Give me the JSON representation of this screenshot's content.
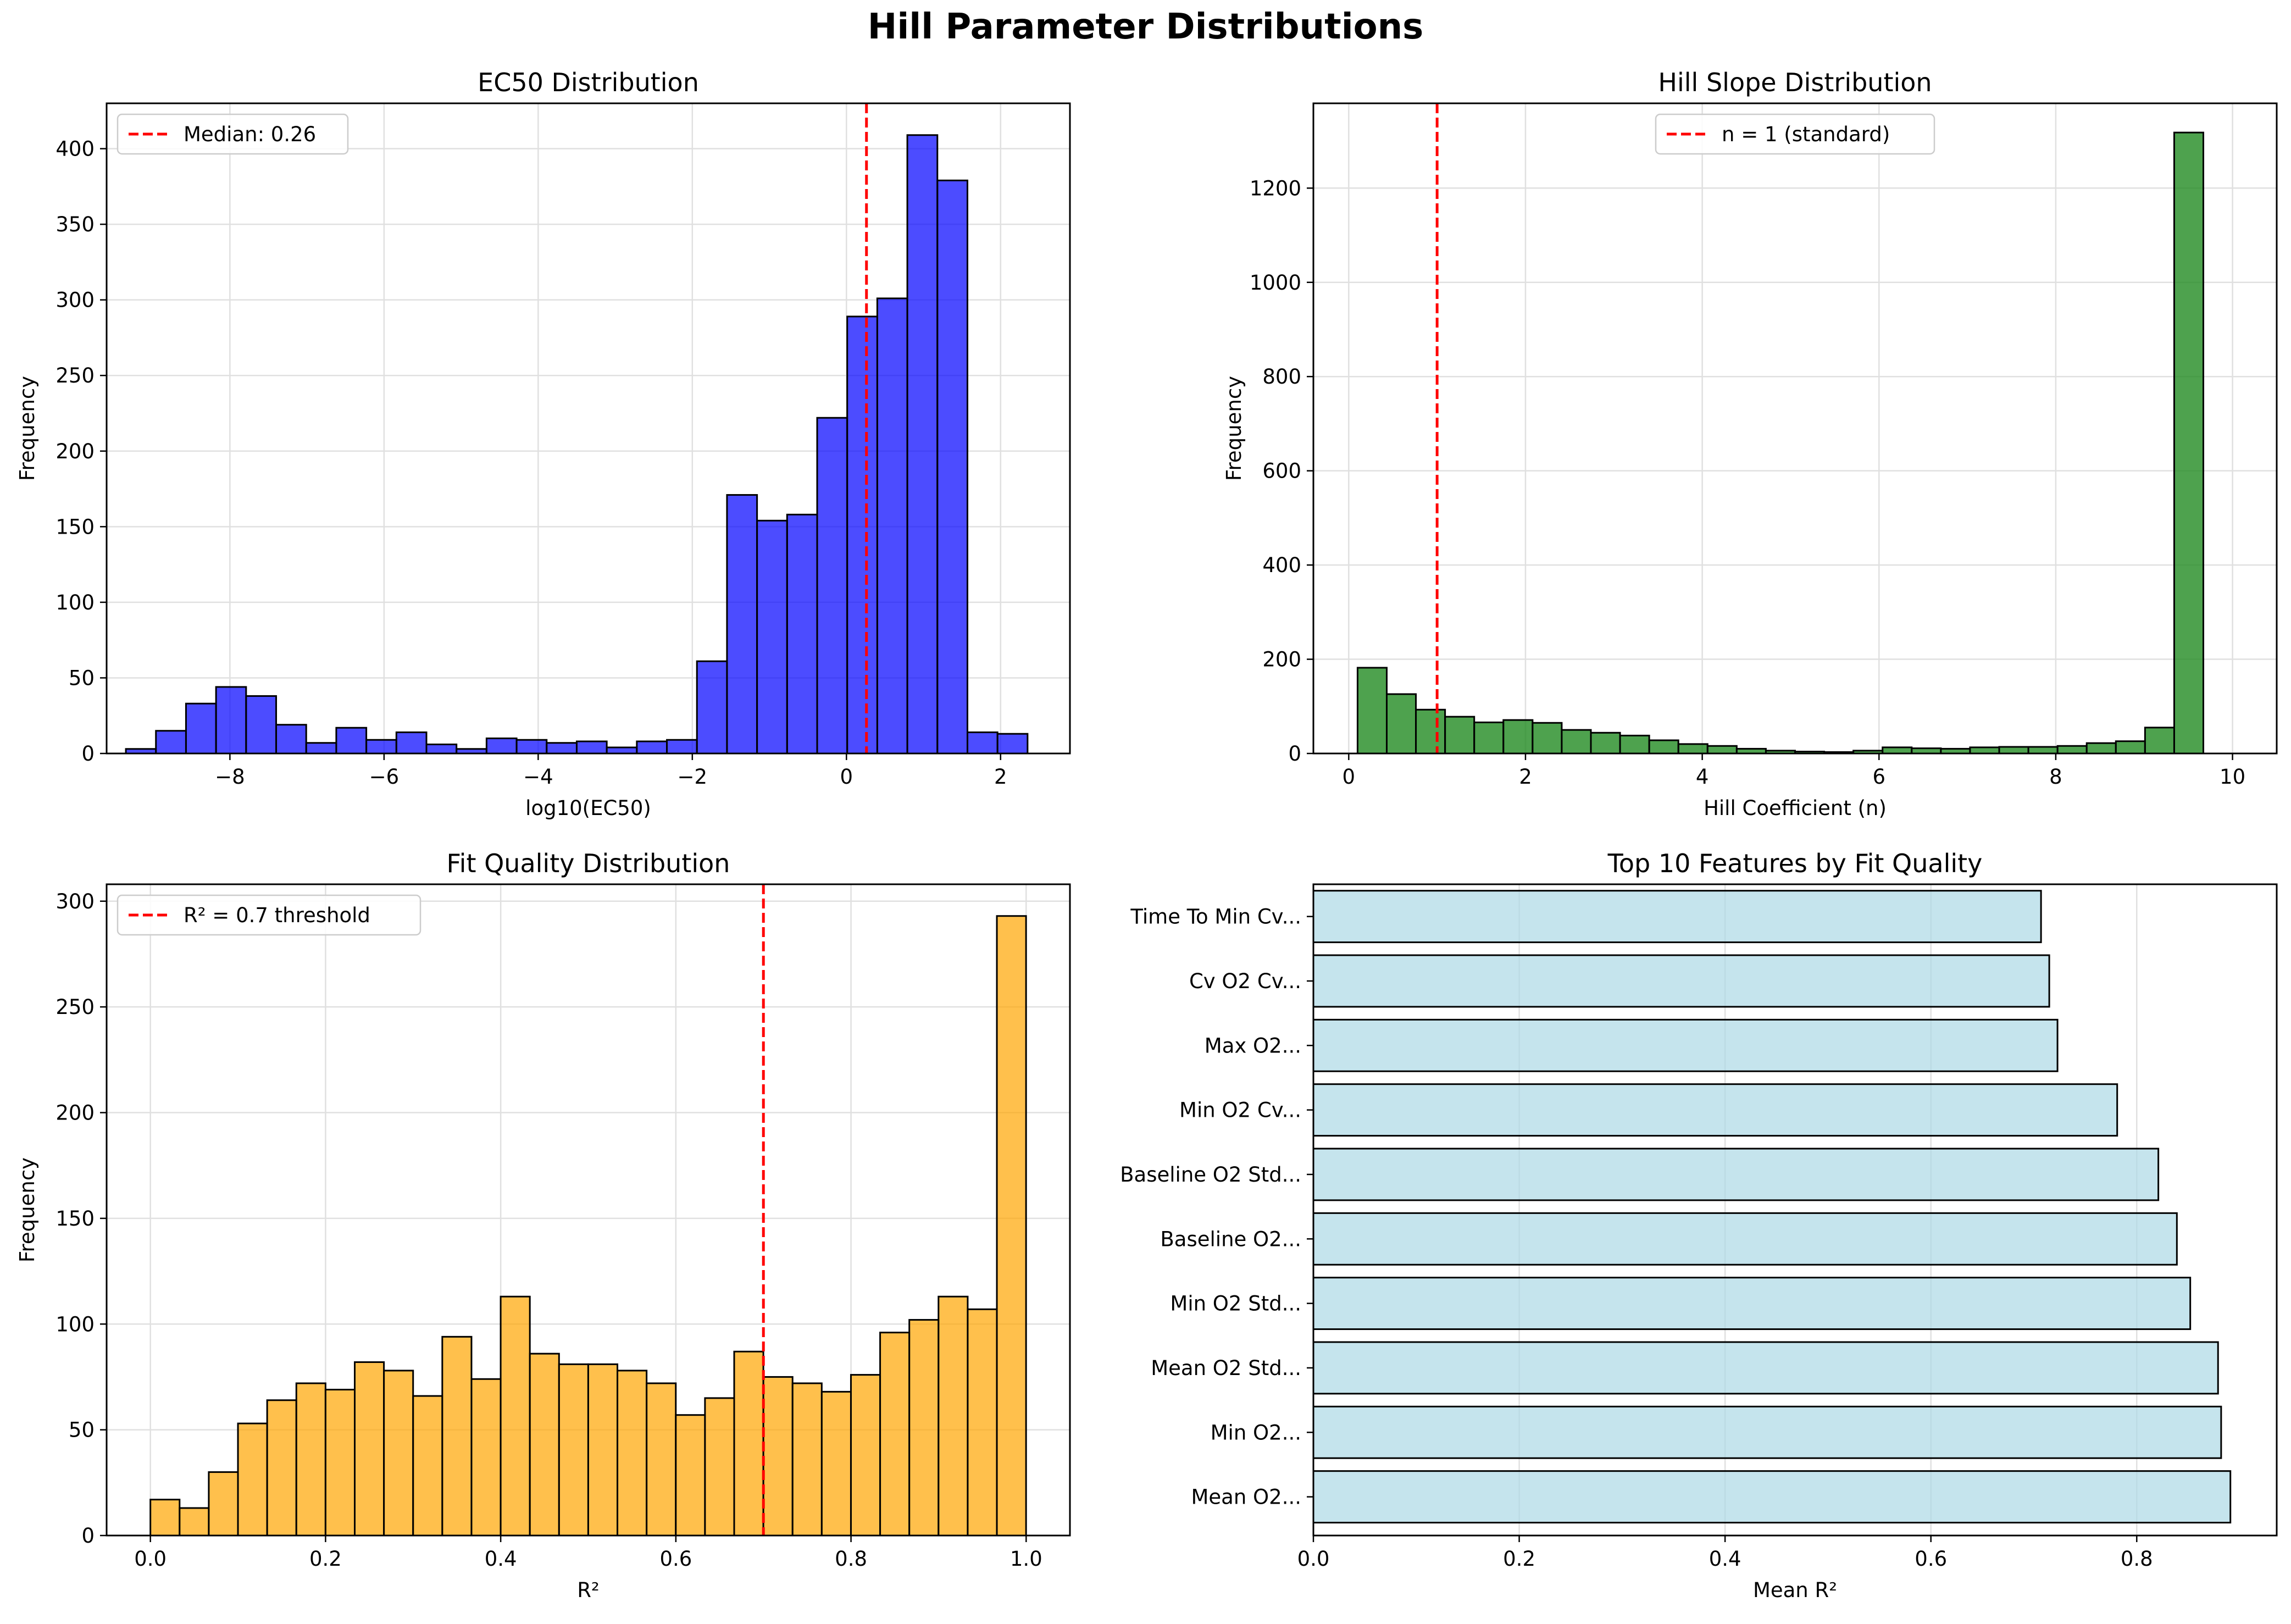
{
  "suptitle": "Hill Parameter Distributions",
  "colors": {
    "ec50": "#0000ff",
    "hill": "#228b22",
    "fit": "#ffa500",
    "features": "#add8e6",
    "edge": "#000000",
    "vline": "#ff0000",
    "grid": "#e0e0e0"
  },
  "chart_data": [
    {
      "type": "bar",
      "title": "EC50 Distribution",
      "xlabel": "log10(EC50)",
      "ylabel": "Frequency",
      "xlim": [
        -9.6,
        2.9
      ],
      "ylim": [
        0,
        430
      ],
      "xticks": [
        -8,
        -6,
        -4,
        -2,
        0,
        2
      ],
      "xtick_labels": [
        "−8",
        "−6",
        "−4",
        "−2",
        "0",
        "2"
      ],
      "yticks": [
        0,
        50,
        100,
        150,
        200,
        250,
        300,
        350,
        400
      ],
      "bin_start": -9.35,
      "bin_width": 0.39,
      "values": [
        3,
        15,
        33,
        44,
        38,
        19,
        7,
        17,
        9,
        14,
        6,
        3,
        10,
        9,
        7,
        8,
        4,
        8,
        9,
        61,
        171,
        154,
        158,
        222,
        289,
        301,
        409,
        379,
        14,
        13
      ],
      "vline": {
        "x": 0.26,
        "label": "Median: 0.26"
      },
      "legend": "top-left",
      "grid": true
    },
    {
      "type": "bar",
      "title": "Hill Slope Distribution",
      "xlabel": "Hill Coefficient (n)",
      "ylabel": "Frequency",
      "xlim": [
        -0.4,
        10.5
      ],
      "ylim": [
        0,
        1380
      ],
      "xticks": [
        0,
        2,
        4,
        6,
        8,
        10
      ],
      "xtick_labels": [
        "0",
        "2",
        "4",
        "6",
        "8",
        "10"
      ],
      "yticks": [
        0,
        200,
        400,
        600,
        800,
        1000,
        1200
      ],
      "bin_start": 0.1,
      "bin_width": 0.33,
      "values": [
        182,
        126,
        93,
        78,
        66,
        71,
        65,
        50,
        44,
        38,
        28,
        20,
        16,
        10,
        6,
        4,
        3,
        6,
        13,
        11,
        10,
        13,
        14,
        14,
        16,
        22,
        26,
        55,
        1318
      ],
      "vline": {
        "x": 1,
        "label": "n = 1 (standard)"
      },
      "legend": "top-center",
      "grid": true
    },
    {
      "type": "bar",
      "title": "Fit Quality Distribution",
      "xlabel": "R²",
      "ylabel": "Frequency",
      "xlim": [
        -0.05,
        1.05
      ],
      "ylim": [
        0,
        308
      ],
      "xticks": [
        0.0,
        0.2,
        0.4,
        0.6,
        0.8,
        1.0
      ],
      "xtick_labels": [
        "0.0",
        "0.2",
        "0.4",
        "0.6",
        "0.8",
        "1.0"
      ],
      "yticks": [
        0,
        50,
        100,
        150,
        200,
        250,
        300
      ],
      "bin_start": 0,
      "bin_width": 0.03333,
      "values": [
        17,
        13,
        30,
        53,
        64,
        72,
        69,
        82,
        78,
        66,
        94,
        74,
        113,
        86,
        81,
        81,
        78,
        72,
        57,
        65,
        87,
        75,
        72,
        68,
        76,
        96,
        102,
        113,
        107,
        293
      ],
      "vline": {
        "x": 0.7,
        "label": "R² = 0.7 threshold"
      },
      "legend": "top-left",
      "grid": true
    },
    {
      "type": "bar",
      "orientation": "horizontal",
      "title": "Top 10 Features by Fit Quality",
      "xlabel": "Mean R²",
      "xlim": [
        0,
        0.936
      ],
      "xticks": [
        0.0,
        0.2,
        0.4,
        0.6,
        0.8
      ],
      "xtick_labels": [
        "0.0",
        "0.2",
        "0.4",
        "0.6",
        "0.8"
      ],
      "categories": [
        "Mean O2...",
        "Min O2...",
        "Mean O2 Std...",
        "Min O2 Std...",
        "Baseline O2...",
        "Baseline O2 Std...",
        "Min O2 Cv...",
        "Max O2...",
        "Cv O2 Cv...",
        "Time To Min Cv..."
      ],
      "values": [
        0.891,
        0.882,
        0.879,
        0.852,
        0.839,
        0.821,
        0.781,
        0.723,
        0.715,
        0.707
      ],
      "grid": true
    }
  ]
}
